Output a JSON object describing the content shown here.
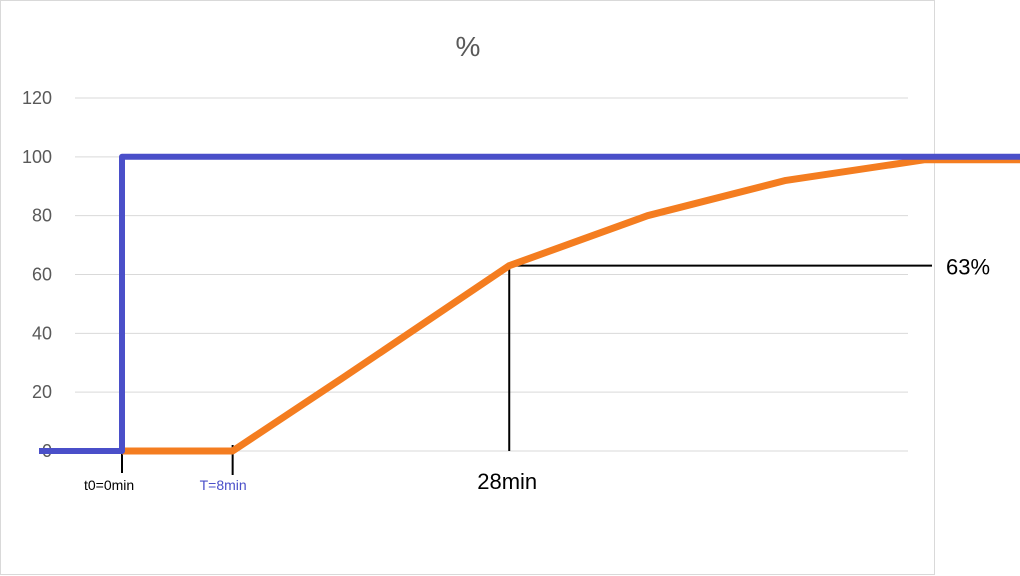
{
  "chart_data": {
    "type": "line",
    "title": "%",
    "xlabel": "",
    "ylabel": "",
    "ylim": [
      0,
      120
    ],
    "yticks": [
      0,
      20,
      40,
      60,
      80,
      100,
      120
    ],
    "grid": true,
    "legend": "none",
    "colors": {
      "step_input": "#4a4fc9",
      "response": "#f47d20",
      "gridline": "#d9d9d9",
      "axis_text": "#595959",
      "annotation": "#000000"
    },
    "series": [
      {
        "points": [
          {
            "x": -6,
            "y": 0
          },
          {
            "x": 0,
            "y": 0
          },
          {
            "x": 0,
            "y": 100
          },
          {
            "x": 75,
            "y": 100
          }
        ]
      },
      {
        "points": [
          {
            "x": 0,
            "y": 0
          },
          {
            "x": 8,
            "y": 0
          },
          {
            "x": 16,
            "y": 25
          },
          {
            "x": 28,
            "y": 63
          },
          {
            "x": 38,
            "y": 80
          },
          {
            "x": 48,
            "y": 92
          },
          {
            "x": 58,
            "y": 99
          },
          {
            "x": 73,
            "y": 99
          }
        ]
      }
    ],
    "annotations": {
      "t0_label": "t0=0min",
      "t0_x": 0,
      "dead_time_label": "T=8min",
      "dead_time_x": 8,
      "time_constant_label": "28min",
      "time_constant_x": 28,
      "percent_label": "63%",
      "percent_y": 63
    }
  }
}
